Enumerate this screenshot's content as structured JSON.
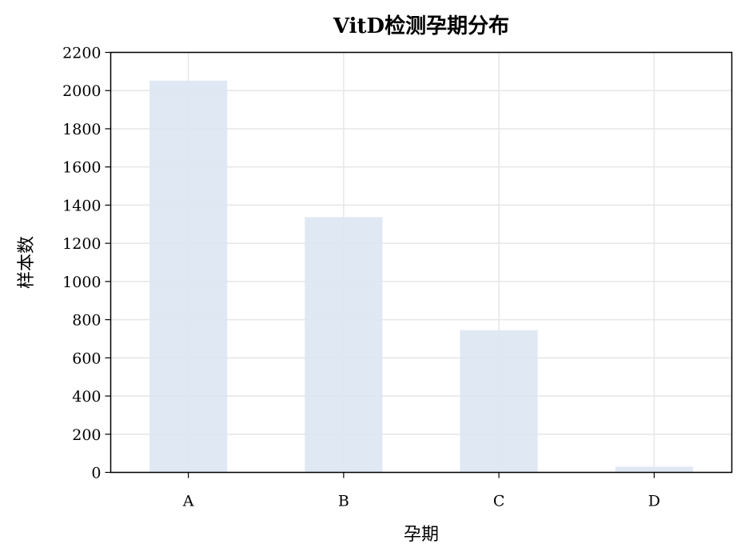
{
  "chart_data": {
    "type": "bar",
    "title": "VitD检测孕期分布",
    "xlabel": "孕期",
    "ylabel": "样本数",
    "categories": [
      "A",
      "B",
      "C",
      "D"
    ],
    "values": [
      2052,
      1337,
      745,
      30
    ],
    "ylim": [
      0,
      2200
    ],
    "yticks": [
      0,
      200,
      400,
      600,
      800,
      1000,
      1200,
      1400,
      1600,
      1800,
      2000,
      2200
    ],
    "grid": true,
    "legend": "none",
    "bar_color": "#dce6f2"
  }
}
